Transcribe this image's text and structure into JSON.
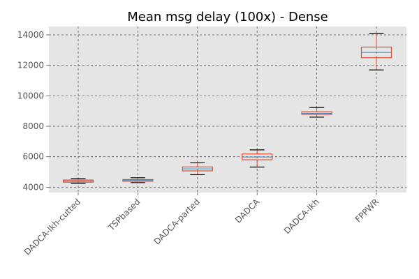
{
  "chart_data": {
    "type": "box",
    "title": "Mean msg delay (100x) - Dense",
    "xlabel": "",
    "ylabel": "",
    "ylim": [
      3650,
      14550
    ],
    "yticks": [
      4000,
      6000,
      8000,
      10000,
      12000,
      14000
    ],
    "ytick_labels": [
      "4000",
      "6000",
      "8000",
      "10000",
      "12000",
      "14000"
    ],
    "grid": true,
    "categories": [
      "DADCA-lkh-cutted",
      "TSPbased",
      "DADCA-parted",
      "DADCA",
      "DADCA-lkh",
      "FPPWR"
    ],
    "boxes": [
      {
        "whisker_low": 4250,
        "q1": 4330,
        "median": 4400,
        "q3": 4470,
        "whisker_high": 4560
      },
      {
        "whisker_low": 4300,
        "q1": 4390,
        "median": 4440,
        "q3": 4500,
        "whisker_high": 4620
      },
      {
        "whisker_low": 4820,
        "q1": 5070,
        "median": 5200,
        "q3": 5330,
        "whisker_high": 5600
      },
      {
        "whisker_low": 5320,
        "q1": 5800,
        "median": 5980,
        "q3": 6180,
        "whisker_high": 6450
      },
      {
        "whisker_low": 8600,
        "q1": 8780,
        "median": 8850,
        "q3": 8950,
        "whisker_high": 9230
      },
      {
        "whisker_low": 11700,
        "q1": 12500,
        "median": 12850,
        "q3": 13200,
        "whisker_high": 14080
      }
    ],
    "colors": {
      "plot_background": "#e5e5e5",
      "box": "#e24a33",
      "median": "#348abd",
      "whisker_cap": "#000000",
      "grid": "#555555"
    }
  }
}
